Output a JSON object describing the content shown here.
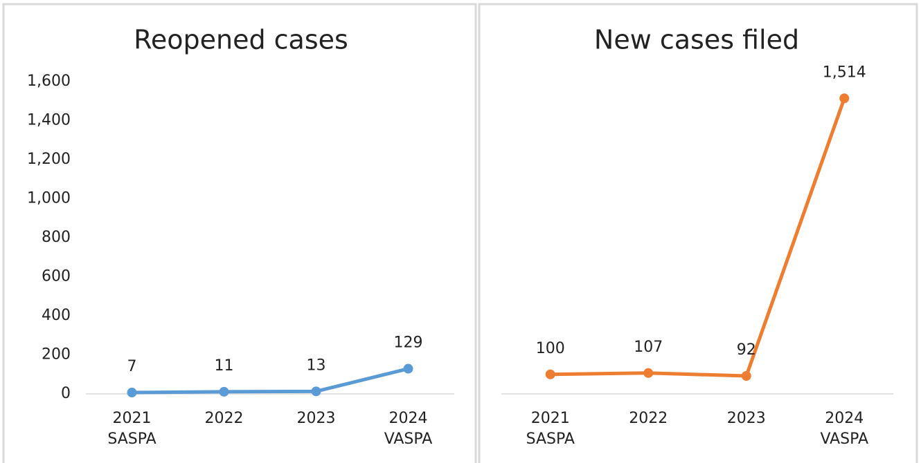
{
  "chart_data": [
    {
      "type": "line",
      "title": "Reopened cases",
      "categories": [
        [
          "2021",
          "SASPA"
        ],
        [
          "2022"
        ],
        [
          "2023"
        ],
        [
          "2024",
          "VASPA"
        ]
      ],
      "series": [
        {
          "name": "Reopened cases",
          "color": "#5b9bd5",
          "values": [
            7,
            11,
            13,
            129
          ]
        }
      ],
      "ylim": [
        0,
        1600
      ],
      "yticks": [
        0,
        200,
        400,
        600,
        800,
        {
          "value": 1000,
          "label": "1,000"
        },
        {
          "value": 1200,
          "label": "1,200"
        },
        {
          "value": 1400,
          "label": "1,400"
        },
        {
          "value": 1600,
          "label": "1,600"
        }
      ]
    },
    {
      "type": "line",
      "title": "New cases filed",
      "categories": [
        [
          "2021",
          "SASPA"
        ],
        [
          "2022"
        ],
        [
          "2023"
        ],
        [
          "2024",
          "VASPA"
        ]
      ],
      "series": [
        {
          "name": "New cases filed",
          "color": "#ed7d31",
          "values": [
            100,
            107,
            92,
            1514
          ],
          "value_labels": [
            "100",
            "107",
            "92",
            "1,514"
          ]
        }
      ],
      "ylim": [
        0,
        1600
      ]
    }
  ]
}
